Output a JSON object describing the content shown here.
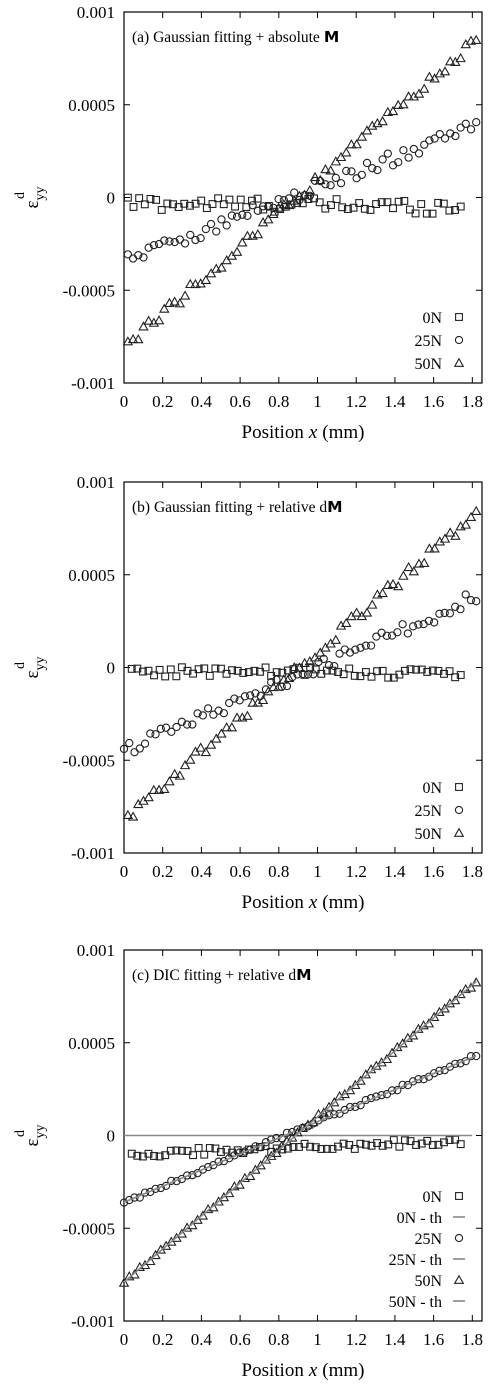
{
  "chart_data": [
    {
      "type": "scatter",
      "panel_label": "(a) Gaussian fitting + absolute",
      "panel_bold": "M",
      "ylabel": "ε",
      "ylabel_sup": "d",
      "ylabel_sub": "yy",
      "xlabel": "Position",
      "xlabel_var": "x",
      "xlabel_unit": "(mm)",
      "xlim": [
        0,
        1.85
      ],
      "ylim": [
        -0.001,
        0.001
      ],
      "xticks": [
        0,
        0.2,
        0.4,
        0.6,
        0.8,
        1,
        1.2,
        1.4,
        1.6,
        1.8
      ],
      "xtick_labels": [
        "0",
        "0.2",
        "0.4",
        "0.6",
        "0.8",
        "1",
        "1.2",
        "1.4",
        "1.6",
        "1.8"
      ],
      "yticks": [
        0.001,
        0.0005,
        0,
        -0.0005,
        -0.001
      ],
      "ytick_labels": [
        "0.001",
        "0.0005",
        "0",
        "-0.0005",
        "-0.001"
      ],
      "legend_position": "bottom-right",
      "series": [
        {
          "name": "0N",
          "marker": "square",
          "kind": "points",
          "x_start": 0.02,
          "x_end": 1.74,
          "n": 60,
          "y_start": -3e-05,
          "y_end": -5e-05,
          "noise": 4e-05
        },
        {
          "name": "25N",
          "marker": "circle",
          "kind": "points",
          "x_start": 0.02,
          "x_end": 1.82,
          "n": 68,
          "y_start": -0.00033,
          "y_end": 0.00038,
          "noise": 4e-05
        },
        {
          "name": "50N",
          "marker": "triangle",
          "kind": "points",
          "x_start": 0.02,
          "x_end": 1.82,
          "n": 68,
          "y_start": -0.00079,
          "y_end": 0.00085,
          "noise": 3e-05
        }
      ]
    },
    {
      "type": "scatter",
      "panel_label": "(b) Gaussian fitting + relative d",
      "panel_bold": "M",
      "ylabel": "ε",
      "ylabel_sup": "d",
      "ylabel_sub": "yy",
      "xlabel": "Position",
      "xlabel_var": "x",
      "xlabel_unit": "(mm)",
      "xlim": [
        0,
        1.85
      ],
      "ylim": [
        -0.001,
        0.001
      ],
      "xticks": [
        0,
        0.2,
        0.4,
        0.6,
        0.8,
        1,
        1.2,
        1.4,
        1.6,
        1.8
      ],
      "xtick_labels": [
        "0",
        "0.2",
        "0.4",
        "0.6",
        "0.8",
        "1",
        "1.2",
        "1.4",
        "1.6",
        "1.8"
      ],
      "yticks": [
        0.001,
        0.0005,
        0,
        -0.0005,
        -0.001
      ],
      "ytick_labels": [
        "0.001",
        "0.0005",
        "0",
        "-0.0005",
        "-0.001"
      ],
      "legend_position": "bottom-right",
      "series": [
        {
          "name": "0N",
          "marker": "square",
          "kind": "points",
          "x_start": 0.04,
          "x_end": 1.74,
          "n": 60,
          "y_start": -2e-05,
          "y_end": -3e-05,
          "noise": 3e-05
        },
        {
          "name": "25N",
          "marker": "circle",
          "kind": "points",
          "x_start": 0.0,
          "x_end": 1.82,
          "n": 68,
          "y_start": -0.00045,
          "y_end": 0.00038,
          "noise": 4e-05
        },
        {
          "name": "50N",
          "marker": "triangle",
          "kind": "points",
          "x_start": 0.02,
          "x_end": 1.82,
          "n": 68,
          "y_start": -0.0008,
          "y_end": 0.00083,
          "noise": 3e-05
        }
      ]
    },
    {
      "type": "scatter",
      "panel_label": "(c) DIC fitting + relative d",
      "panel_bold": "M",
      "ylabel": "ε",
      "ylabel_sup": "d",
      "ylabel_sub": "yy",
      "xlabel": "Position",
      "xlabel_var": "x",
      "xlabel_unit": "(mm)",
      "xlim": [
        0,
        1.85
      ],
      "ylim": [
        -0.001,
        0.001
      ],
      "xticks": [
        0,
        0.2,
        0.4,
        0.6,
        0.8,
        1,
        1.2,
        1.4,
        1.6,
        1.8
      ],
      "xtick_labels": [
        "0",
        "0.2",
        "0.4",
        "0.6",
        "0.8",
        "1",
        "1.2",
        "1.4",
        "1.6",
        "1.8"
      ],
      "yticks": [
        0.001,
        0.0005,
        0,
        -0.0005,
        -0.001
      ],
      "ytick_labels": [
        "0.001",
        "0.0005",
        "0",
        "-0.0005",
        "-0.001"
      ],
      "legend_position": "bottom-right",
      "series": [
        {
          "name": "0N",
          "marker": "square",
          "kind": "points",
          "x_start": 0.04,
          "x_end": 1.74,
          "n": 60,
          "y_start": -0.0001,
          "y_end": -3e-05,
          "noise": 2e-05
        },
        {
          "name": "0N - th",
          "marker": "line",
          "kind": "line",
          "x_start": 0.0,
          "x_end": 1.8,
          "y_start": 0.0,
          "y_end": 0.0
        },
        {
          "name": "25N",
          "marker": "circle",
          "kind": "points",
          "x_start": 0.0,
          "x_end": 1.82,
          "n": 68,
          "y_start": -0.00036,
          "y_end": 0.00043,
          "noise": 1e-05
        },
        {
          "name": "25N - th",
          "marker": "line",
          "kind": "line",
          "x_start": 0.0,
          "x_end": 1.82,
          "y_start": -0.00036,
          "y_end": 0.00043
        },
        {
          "name": "50N",
          "marker": "triangle",
          "kind": "points",
          "x_start": 0.0,
          "x_end": 1.82,
          "n": 68,
          "y_start": -0.00079,
          "y_end": 0.00083,
          "noise": 1e-05
        },
        {
          "name": "50N - th",
          "marker": "line",
          "kind": "line",
          "x_start": 0.0,
          "x_end": 1.82,
          "y_start": -0.00079,
          "y_end": 0.00083
        }
      ]
    }
  ]
}
